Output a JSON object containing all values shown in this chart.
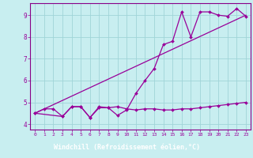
{
  "background_color": "#c8eef0",
  "grid_color": "#a0d4d8",
  "line_color": "#990099",
  "spine_color": "#880088",
  "xlabel": "Windchill (Refroidissement éolien,°C)",
  "xlabel_color": "#ffffff",
  "xlabel_bg": "#880088",
  "xlim": [
    -0.5,
    23.5
  ],
  "ylim": [
    3.75,
    9.55
  ],
  "yticks": [
    4,
    5,
    6,
    7,
    8,
    9
  ],
  "xticks": [
    0,
    1,
    2,
    3,
    4,
    5,
    6,
    7,
    8,
    9,
    10,
    11,
    12,
    13,
    14,
    15,
    16,
    17,
    18,
    19,
    20,
    21,
    22,
    23
  ],
  "series_flat_x": [
    0,
    1,
    2,
    3,
    4,
    5,
    6,
    7,
    8,
    9,
    10,
    11,
    12,
    13,
    14,
    15,
    16,
    17,
    18,
    19,
    20,
    21,
    22,
    23
  ],
  "series_flat_y": [
    4.5,
    4.7,
    4.7,
    4.35,
    4.8,
    4.8,
    4.3,
    4.8,
    4.75,
    4.8,
    4.7,
    4.65,
    4.7,
    4.7,
    4.65,
    4.65,
    4.7,
    4.7,
    4.75,
    4.8,
    4.85,
    4.9,
    4.95,
    5.0
  ],
  "series_jagged_x": [
    0,
    3,
    4,
    5,
    6,
    7,
    8,
    9,
    10,
    11,
    12,
    13,
    14,
    15,
    16,
    17,
    18,
    19,
    20,
    21,
    22,
    23
  ],
  "series_jagged_y": [
    4.5,
    4.35,
    4.8,
    4.8,
    4.3,
    4.75,
    4.75,
    4.4,
    4.65,
    5.4,
    6.0,
    6.55,
    7.65,
    7.8,
    9.15,
    8.0,
    9.15,
    9.15,
    9.0,
    8.95,
    9.3,
    8.95
  ],
  "series_line_x": [
    0,
    23
  ],
  "series_line_y": [
    4.5,
    9.0
  ],
  "marker": "D",
  "markersize": 2.0,
  "linewidth": 0.9
}
